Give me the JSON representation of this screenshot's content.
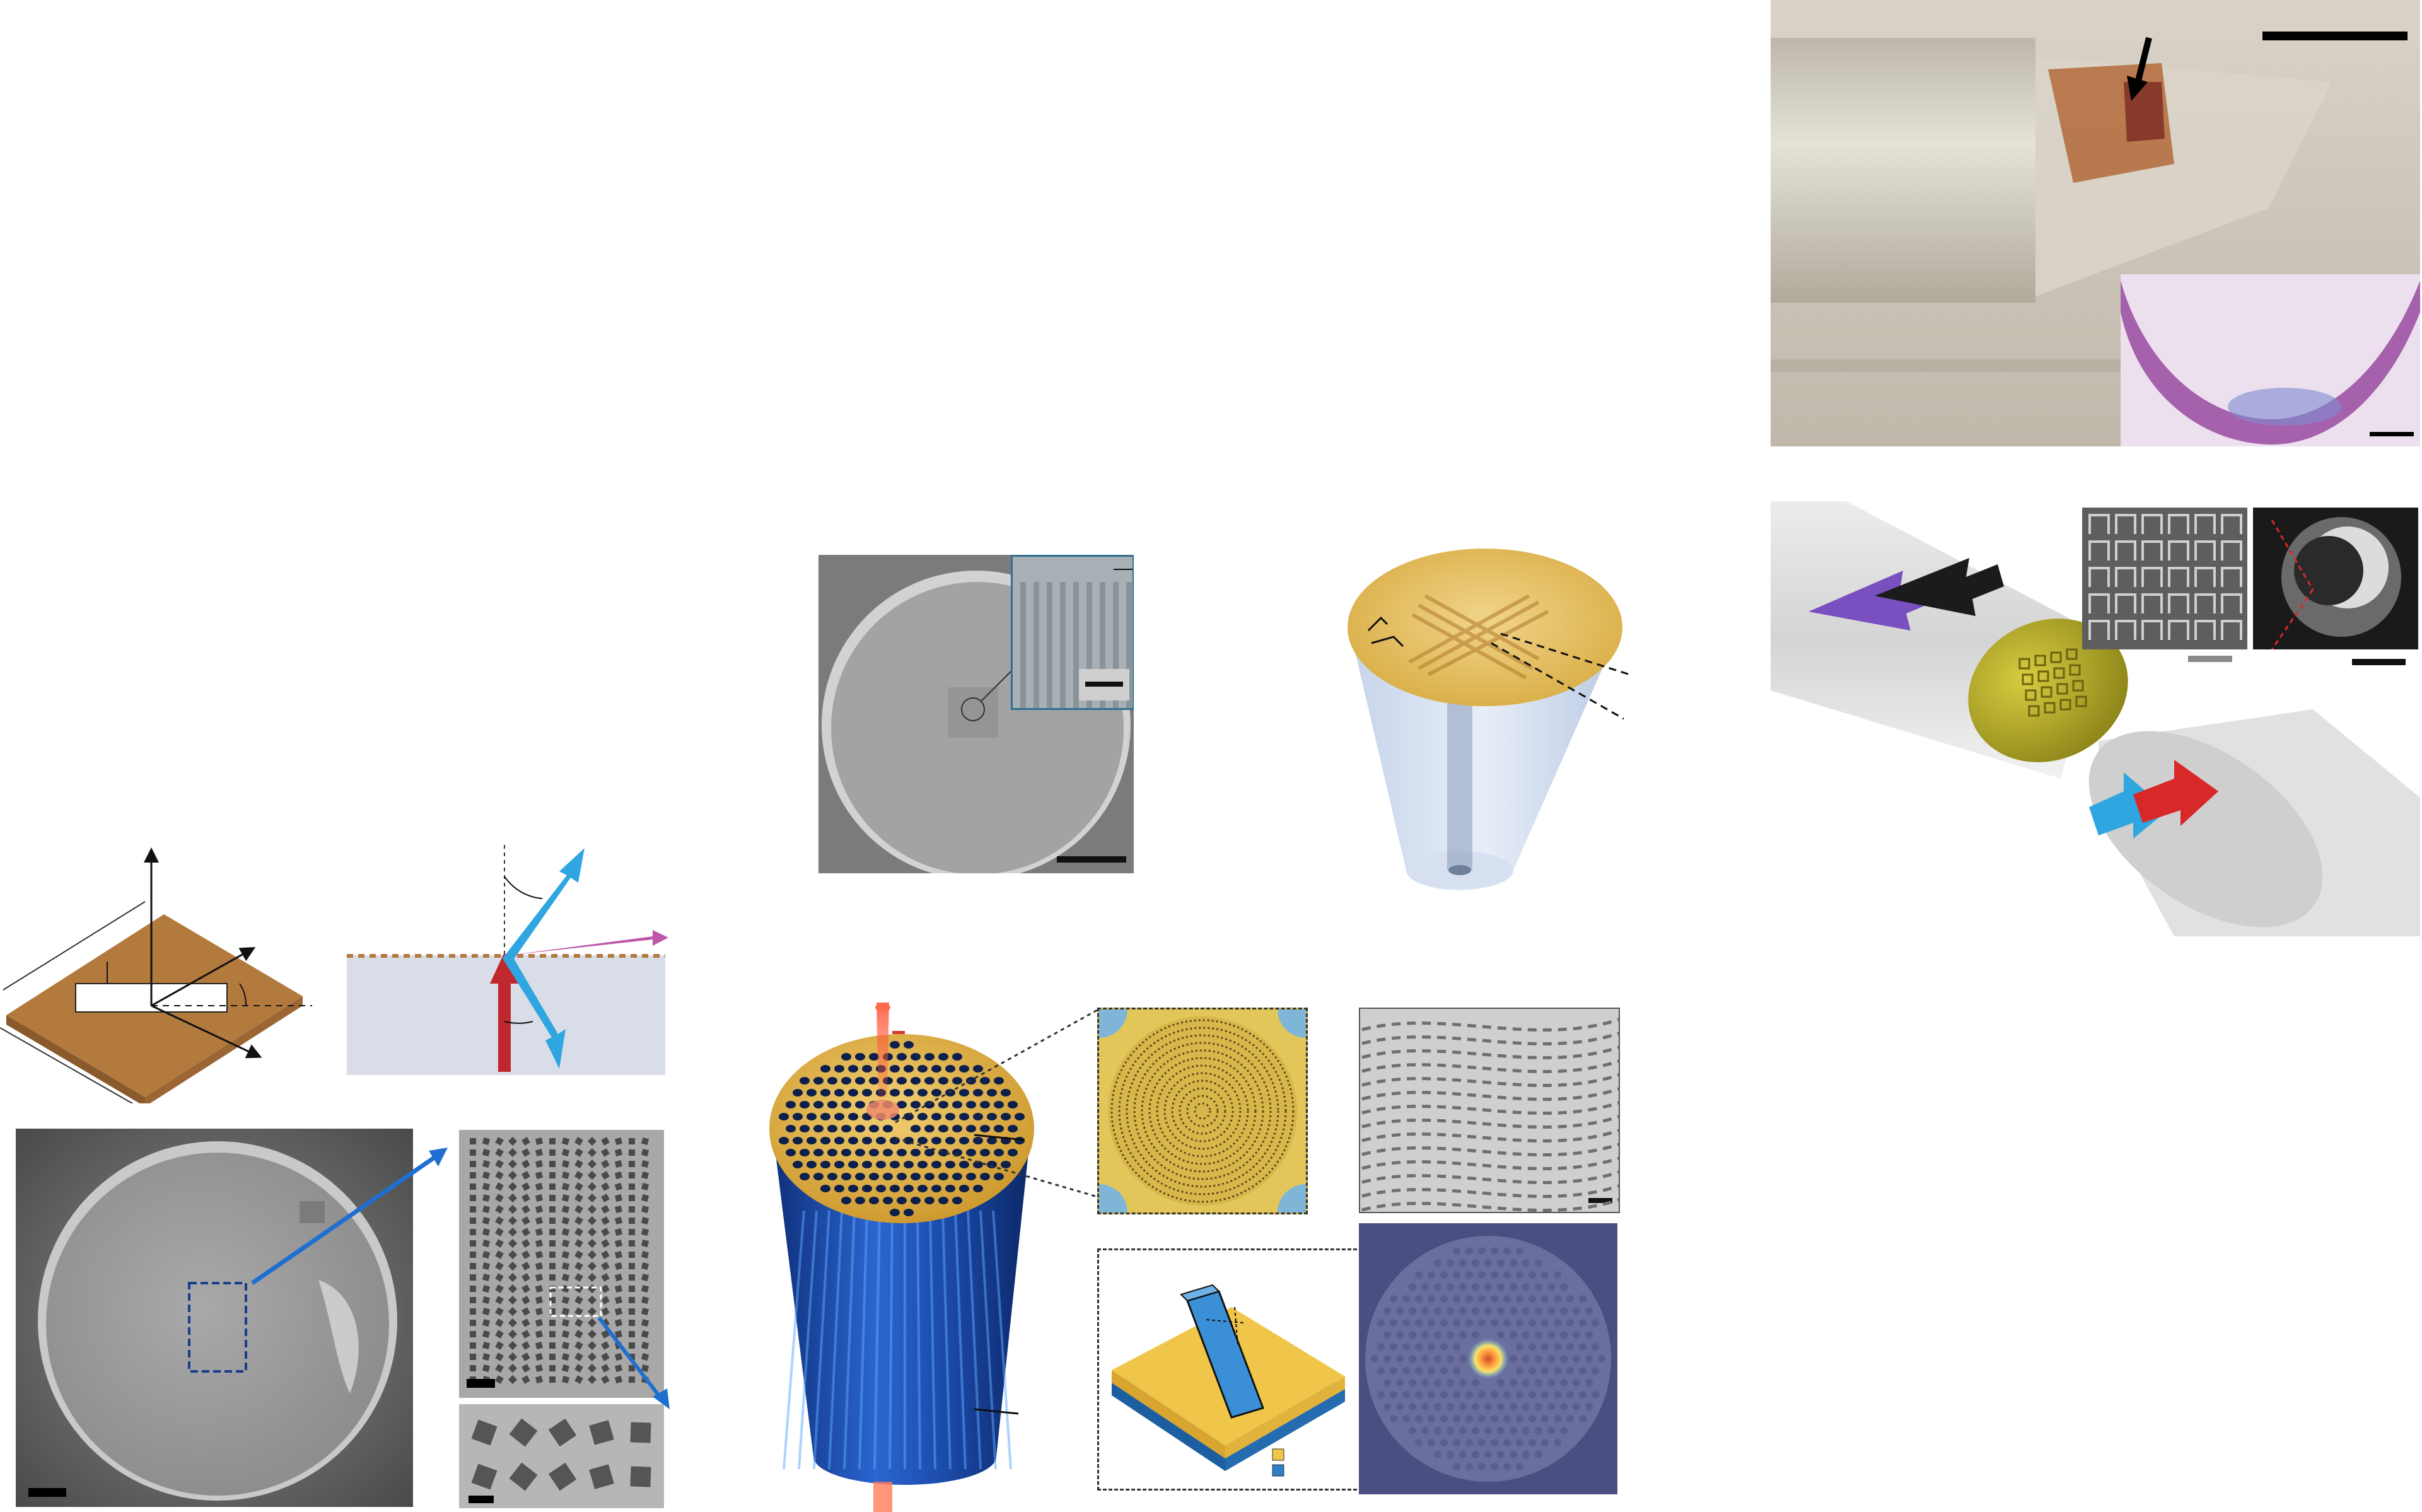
{
  "figure": {
    "panels": [
      {
        "id": "metasurface-geometry-schematic",
        "kind": "schematic"
      },
      {
        "id": "anomalous-refraction-schematic",
        "kind": "schematic"
      },
      {
        "id": "fiber-facet-sem",
        "kind": "micrograph"
      },
      {
        "id": "nanoantenna-array-sem",
        "kind": "micrograph"
      },
      {
        "id": "nanoantenna-detail-sem",
        "kind": "micrograph"
      },
      {
        "id": "grating-fiber-sem",
        "kind": "micrograph"
      },
      {
        "id": "gold-crossed-grating-fiber-render",
        "kind": "render"
      },
      {
        "id": "photonic-crystal-fiber-render",
        "kind": "render"
      },
      {
        "id": "metalens-render",
        "kind": "render"
      },
      {
        "id": "metalens-sem",
        "kind": "micrograph"
      },
      {
        "id": "nanopillar-unit-cell-render",
        "kind": "render"
      },
      {
        "id": "pcf-mode-image",
        "kind": "micrograph"
      },
      {
        "id": "probe-photo",
        "kind": "photo"
      },
      {
        "id": "histology-inset",
        "kind": "micrograph"
      },
      {
        "id": "fiber-coupling-render",
        "kind": "render"
      },
      {
        "id": "split-ring-array-sem",
        "kind": "micrograph"
      },
      {
        "id": "fiber-end-micrograph",
        "kind": "micrograph"
      }
    ]
  },
  "colors": {
    "gold": "#d9ad45",
    "copper": "#b37a3e",
    "blue_arrow": "#2fa6e0",
    "red_arrow": "#c0282d",
    "magenta_arrow": "#b0399a",
    "purple_arrow": "#7a4fc0",
    "navy_fiber": "#1d4fa8"
  }
}
